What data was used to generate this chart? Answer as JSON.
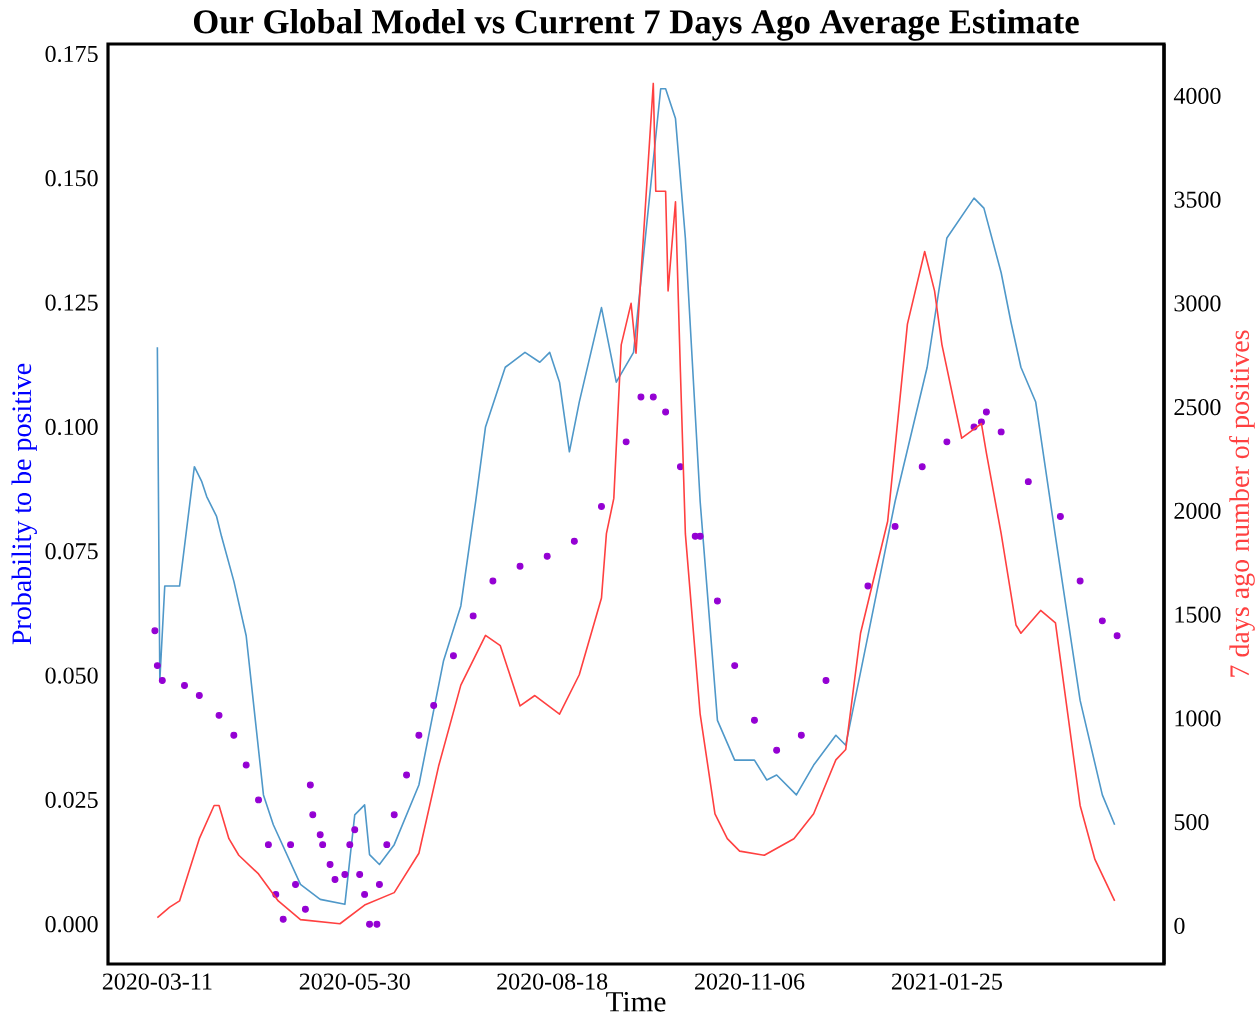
{
  "chart_data": {
    "type": "line",
    "title": "Our Global Model vs Current 7 Days Ago Average Estimate",
    "xlabel": "Time",
    "ylabel": "Probability to be positive",
    "y2label": "7 days ago number of positives",
    "xlim": [
      "2020-02-20",
      "2021-04-23"
    ],
    "xticks": [
      "2020-03-11",
      "2020-05-30",
      "2020-08-18",
      "2020-11-06",
      "2021-01-25"
    ],
    "ylim": [
      -0.008,
      0.177
    ],
    "yticks": [
      {
        "value": 0,
        "label": "0.000"
      },
      {
        "value": 0.025,
        "label": "0.025"
      },
      {
        "value": 0.05,
        "label": "0.050"
      },
      {
        "value": 0.075,
        "label": "0.075"
      },
      {
        "value": 0.1,
        "label": "0.100"
      },
      {
        "value": 0.125,
        "label": "0.125"
      },
      {
        "value": 0.15,
        "label": "0.150"
      },
      {
        "value": 0.175,
        "label": "0.175"
      }
    ],
    "y2lim": [
      -184,
      4250
    ],
    "y2ticks": [
      0,
      500,
      1000,
      1500,
      2000,
      2500,
      3000,
      3500,
      4000
    ],
    "grid": false,
    "series": [
      {
        "color": "#4f98c9",
        "x": [
          "2020-03-11",
          "2020-03-12",
          "2020-03-14",
          "2020-03-20",
          "2020-03-26",
          "2020-03-29",
          "2020-03-31",
          "2020-04-04",
          "2020-04-06",
          "2020-04-11",
          "2020-04-16",
          "2020-04-23",
          "2020-04-27",
          "2020-05-08",
          "2020-05-16",
          "2020-05-26",
          "2020-05-30",
          "2020-06-03",
          "2020-06-05",
          "2020-06-09",
          "2020-06-15",
          "2020-06-25",
          "2020-07-05",
          "2020-07-12",
          "2020-07-18",
          "2020-07-22",
          "2020-07-30",
          "2020-08-07",
          "2020-08-13",
          "2020-08-17",
          "2020-08-21",
          "2020-08-25",
          "2020-08-29",
          "2020-09-07",
          "2020-09-13",
          "2020-09-20",
          "2020-10-01",
          "2020-10-03",
          "2020-10-07",
          "2020-10-11",
          "2020-10-17",
          "2020-10-24",
          "2020-10-31",
          "2020-11-08",
          "2020-11-13",
          "2020-11-17",
          "2020-11-25",
          "2020-12-02",
          "2020-12-11",
          "2020-12-15",
          "2020-12-24",
          "2021-01-04",
          "2021-01-17",
          "2021-01-25",
          "2021-02-05",
          "2021-02-09",
          "2021-02-16",
          "2021-02-20",
          "2021-02-24",
          "2021-03-02",
          "2021-03-10",
          "2021-03-20",
          "2021-03-29",
          "2021-04-03"
        ],
        "values": [
          0.116,
          0.049,
          0.068,
          0.068,
          0.092,
          0.089,
          0.086,
          0.082,
          0.078,
          0.069,
          0.058,
          0.026,
          0.02,
          0.008,
          0.005,
          0.004,
          0.022,
          0.024,
          0.014,
          0.012,
          0.016,
          0.028,
          0.053,
          0.064,
          0.085,
          0.1,
          0.112,
          0.115,
          0.113,
          0.115,
          0.109,
          0.095,
          0.105,
          0.124,
          0.109,
          0.115,
          0.168,
          0.168,
          0.162,
          0.138,
          0.085,
          0.041,
          0.033,
          0.033,
          0.029,
          0.03,
          0.026,
          0.032,
          0.038,
          0.036,
          0.058,
          0.085,
          0.112,
          0.138,
          0.146,
          0.144,
          0.131,
          0.121,
          0.112,
          0.105,
          0.078,
          0.045,
          0.026,
          0.02
        ]
      },
      {
        "axis": "y2",
        "color": "#ff4040",
        "x": [
          "2020-03-11",
          "2020-03-16",
          "2020-03-20",
          "2020-03-28",
          "2020-04-03",
          "2020-04-05",
          "2020-04-09",
          "2020-04-13",
          "2020-04-21",
          "2020-04-29",
          "2020-05-08",
          "2020-05-24",
          "2020-06-03",
          "2020-06-15",
          "2020-06-25",
          "2020-07-03",
          "2020-07-12",
          "2020-07-22",
          "2020-07-28",
          "2020-08-05",
          "2020-08-11",
          "2020-08-21",
          "2020-08-29",
          "2020-09-07",
          "2020-09-09",
          "2020-09-12",
          "2020-09-15",
          "2020-09-19",
          "2020-09-21",
          "2020-09-24",
          "2020-09-28",
          "2020-09-29",
          "2020-10-03",
          "2020-10-04",
          "2020-10-07",
          "2020-10-09",
          "2020-10-11",
          "2020-10-17",
          "2020-10-23",
          "2020-10-28",
          "2020-11-02",
          "2020-11-12",
          "2020-11-24",
          "2020-12-02",
          "2020-12-11",
          "2020-12-15",
          "2020-12-21",
          "2021-01-01",
          "2021-01-09",
          "2021-01-16",
          "2021-01-20",
          "2021-01-23",
          "2021-01-31",
          "2021-02-08",
          "2021-02-10",
          "2021-02-16",
          "2021-02-22",
          "2021-02-24",
          "2021-03-04",
          "2021-03-10",
          "2021-03-15",
          "2021-03-20",
          "2021-03-26",
          "2021-04-03"
        ],
        "values": [
          40,
          90,
          120,
          420,
          580,
          580,
          420,
          340,
          250,
          120,
          30,
          10,
          100,
          160,
          350,
          770,
          1160,
          1400,
          1350,
          1060,
          1110,
          1020,
          1210,
          1580,
          1890,
          2060,
          2800,
          3000,
          2760,
          3320,
          4060,
          3540,
          3540,
          3060,
          3490,
          2670,
          1890,
          1020,
          540,
          420,
          360,
          340,
          420,
          540,
          800,
          850,
          1410,
          1950,
          2900,
          3250,
          3060,
          2800,
          2350,
          2420,
          2280,
          1890,
          1450,
          1410,
          1520,
          1460,
          1020,
          580,
          320,
          120
        ]
      },
      {
        "type": "scatter",
        "marker": "circle",
        "color": "#9400d3",
        "x": [
          "2020-03-10",
          "2020-03-11",
          "2020-03-13",
          "2020-03-22",
          "2020-03-28",
          "2020-04-05",
          "2020-04-11",
          "2020-04-16",
          "2020-04-21",
          "2020-04-25",
          "2020-04-28",
          "2020-05-01",
          "2020-05-04",
          "2020-05-06",
          "2020-05-10",
          "2020-05-12",
          "2020-05-13",
          "2020-05-16",
          "2020-05-17",
          "2020-05-20",
          "2020-05-22",
          "2020-05-26",
          "2020-05-28",
          "2020-05-30",
          "2020-06-01",
          "2020-06-03",
          "2020-06-05",
          "2020-06-08",
          "2020-06-09",
          "2020-06-12",
          "2020-06-15",
          "2020-06-20",
          "2020-06-25",
          "2020-07-01",
          "2020-07-09",
          "2020-07-17",
          "2020-07-25",
          "2020-08-05",
          "2020-08-16",
          "2020-08-27",
          "2020-09-07",
          "2020-09-17",
          "2020-09-23",
          "2020-09-28",
          "2020-10-03",
          "2020-10-09",
          "2020-10-15",
          "2020-10-17",
          "2020-10-24",
          "2020-10-31",
          "2020-11-08",
          "2020-11-17",
          "2020-11-27",
          "2020-12-07",
          "2020-12-24",
          "2021-01-04",
          "2021-01-15",
          "2021-01-25",
          "2021-02-05",
          "2021-02-08",
          "2021-02-10",
          "2021-02-16",
          "2021-02-27",
          "2021-03-12",
          "2021-03-20",
          "2021-03-29",
          "2021-04-04"
        ],
        "values": [
          0.059,
          0.052,
          0.049,
          0.048,
          0.046,
          0.042,
          0.038,
          0.032,
          0.025,
          0.016,
          0.006,
          0.001,
          0.016,
          0.008,
          0.003,
          0.028,
          0.022,
          0.018,
          0.016,
          0.012,
          0.009,
          0.01,
          0.016,
          0.019,
          0.01,
          0.006,
          0.0,
          0.0,
          0.008,
          0.016,
          0.022,
          0.03,
          0.038,
          0.044,
          0.054,
          0.062,
          0.069,
          0.072,
          0.074,
          0.077,
          0.084,
          0.097,
          0.106,
          0.106,
          0.103,
          0.092,
          0.078,
          0.078,
          0.065,
          0.052,
          0.041,
          0.035,
          0.038,
          0.049,
          0.068,
          0.08,
          0.092,
          0.097,
          0.1,
          0.101,
          0.103,
          0.099,
          0.089,
          0.082,
          0.069,
          0.061,
          0.058
        ]
      }
    ]
  }
}
